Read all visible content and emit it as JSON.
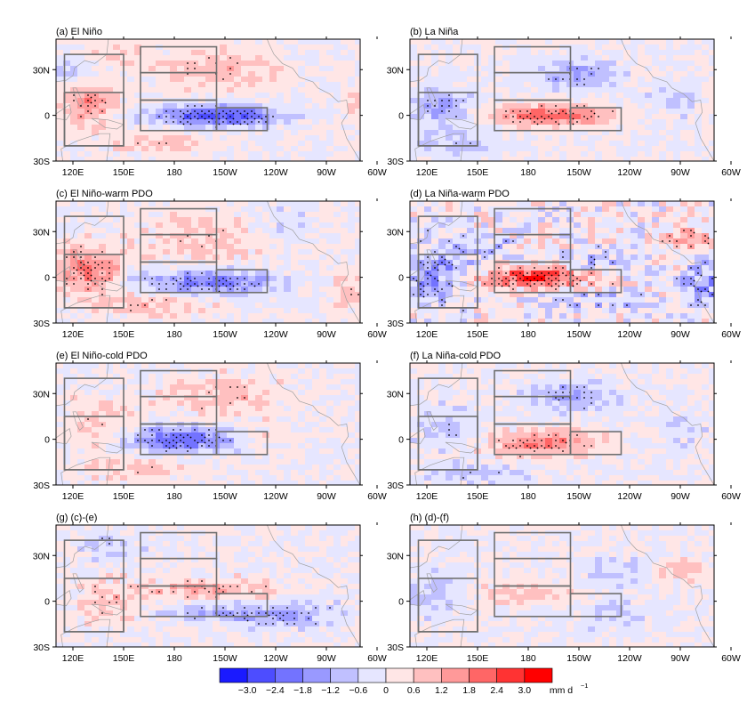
{
  "figure": {
    "lon_ticks": [
      "120E",
      "150E",
      "180",
      "150W",
      "120W",
      "90W",
      "60W"
    ],
    "lat_ticks": [
      "30N",
      "0",
      "30S"
    ],
    "panels": [
      {
        "id": "a",
        "title": "(a) El Niño"
      },
      {
        "id": "b",
        "title": "(b) La Niña"
      },
      {
        "id": "c",
        "title": "(c) El Niño-warm PDO"
      },
      {
        "id": "d",
        "title": "(d) La Niña-warm PDO"
      },
      {
        "id": "e",
        "title": "(e) El Niño-cold PDO"
      },
      {
        "id": "f",
        "title": "(f) La Niña-cold PDO"
      },
      {
        "id": "g",
        "title": "(g) (c)-(e)"
      },
      {
        "id": "h",
        "title": "(h) (d)-(f)"
      }
    ],
    "colorbar": {
      "tick_labels": [
        "−3.0",
        "−2.4",
        "−1.8",
        "−1.2",
        "−0.6",
        "0",
        "0.6",
        "1.2",
        "1.8",
        "2.4",
        "3.0"
      ],
      "unit": "mm d",
      "unit_exp": "−1",
      "levels": [
        -3.0,
        -2.4,
        -1.8,
        -1.2,
        -0.6,
        0,
        0.6,
        1.2,
        1.8,
        2.4,
        3.0
      ],
      "colors": [
        "#1a1aff",
        "#4d4dff",
        "#7373ff",
        "#9999ff",
        "#c0c0ff",
        "#e6e6ff",
        "#ffe6e6",
        "#ffc0c0",
        "#ff9999",
        "#ff6666",
        "#ff3333",
        "#ff0000"
      ]
    },
    "box_colors": {
      "outline": "#707070",
      "land": "#a0a0a0"
    }
  }
}
